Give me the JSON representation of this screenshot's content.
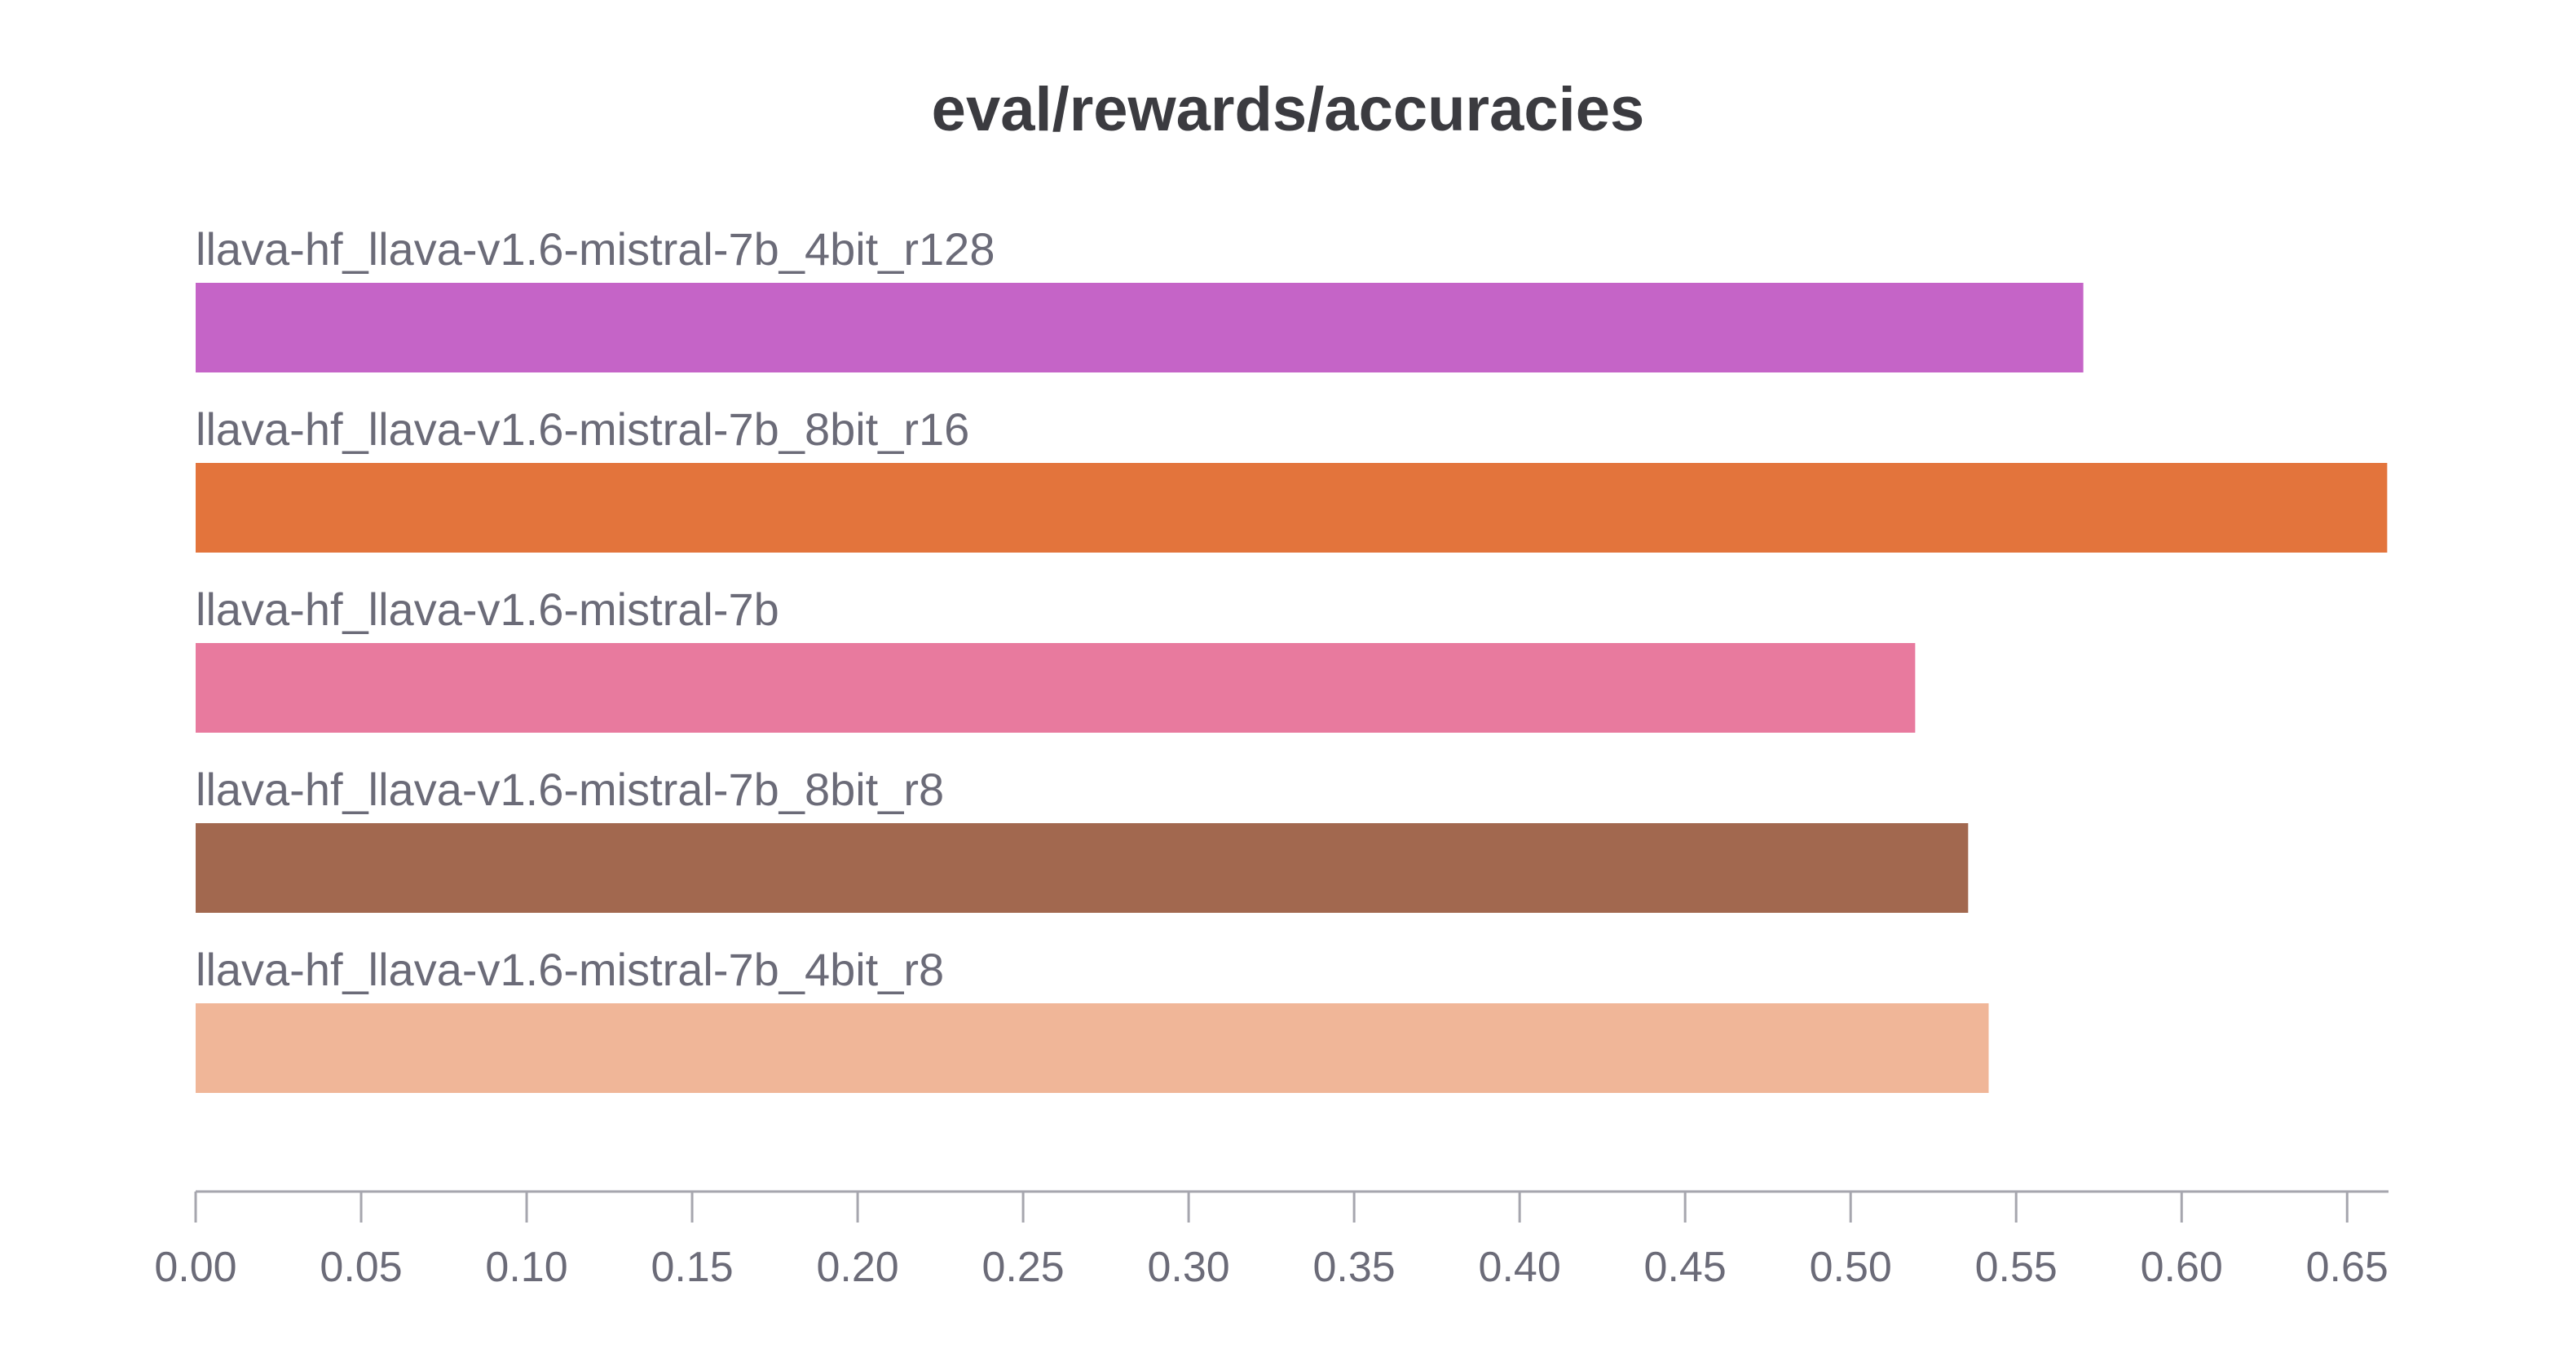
{
  "chart_data": {
    "type": "bar",
    "orientation": "horizontal",
    "title": "eval/rewards/accuracies",
    "xlabel": "",
    "ylabel": "",
    "xlim": [
      0,
      0.6625
    ],
    "grid": false,
    "legend": "none",
    "categories": [
      "llava-hf_llava-v1.6-mistral-7b_4bit_r128",
      "llava-hf_llava-v1.6-mistral-7b_8bit_r16",
      "llava-hf_llava-v1.6-mistral-7b",
      "llava-hf_llava-v1.6-mistral-7b_8bit_r8",
      "llava-hf_llava-v1.6-mistral-7b_4bit_r8"
    ],
    "values": [
      0.5703,
      0.6621,
      0.5195,
      0.5355,
      0.5417
    ],
    "colors": [
      "#c564c7",
      "#e3743c",
      "#e87a9e",
      "#a2684f",
      "#f0b698"
    ],
    "x_ticks": [
      {
        "value": 0.0,
        "label": "0.00"
      },
      {
        "value": 0.05,
        "label": "0.05"
      },
      {
        "value": 0.1,
        "label": "0.10"
      },
      {
        "value": 0.15,
        "label": "0.15"
      },
      {
        "value": 0.2,
        "label": "0.20"
      },
      {
        "value": 0.25,
        "label": "0.25"
      },
      {
        "value": 0.3,
        "label": "0.30"
      },
      {
        "value": 0.35,
        "label": "0.35"
      },
      {
        "value": 0.4,
        "label": "0.40"
      },
      {
        "value": 0.45,
        "label": "0.45"
      },
      {
        "value": 0.5,
        "label": "0.50"
      },
      {
        "value": 0.55,
        "label": "0.55"
      },
      {
        "value": 0.6,
        "label": "0.60"
      },
      {
        "value": 0.65,
        "label": "0.65"
      }
    ]
  }
}
